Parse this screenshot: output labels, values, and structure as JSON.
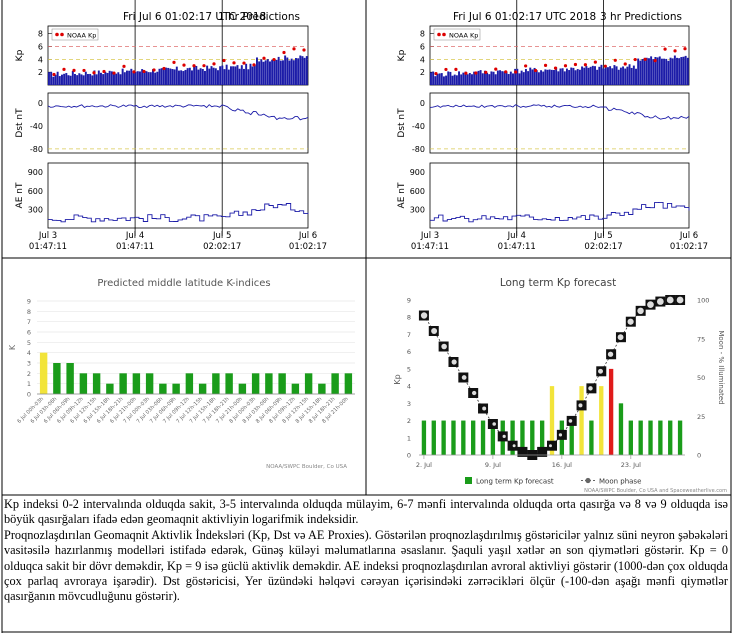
{
  "panels": {
    "pred1": {
      "title": "Fri Jul 6 01:02:17 UTC 2018",
      "subtitle": "1 hr Predictions",
      "legend": "NOAA Kp",
      "kp_label": "Kp",
      "dst_label": "Dst nT",
      "ae_label": "AE nT",
      "kp_ticks": [
        "8",
        "6",
        "4",
        "2"
      ],
      "dst_ticks": [
        "0",
        "-40",
        "-80"
      ],
      "ae_ticks": [
        "900",
        "600",
        "300"
      ],
      "x_ticks": [
        {
          "date": "Jul 3",
          "time": "01:47:11"
        },
        {
          "date": "Jul 4",
          "time": "01:47:11"
        },
        {
          "date": "Jul 5",
          "time": "02:02:17"
        },
        {
          "date": "Jul 6",
          "time": "01:02:17"
        }
      ]
    },
    "pred3": {
      "title": "Fri Jul 6 01:02:17 UTC 2018",
      "subtitle": "3 hr Predictions",
      "legend": "NOAA Kp",
      "kp_label": "Kp",
      "dst_label": "Dst nT",
      "ae_label": "AE nT",
      "kp_ticks": [
        "8",
        "6",
        "4",
        "2"
      ],
      "dst_ticks": [
        "0",
        "-40",
        "-80"
      ],
      "ae_ticks": [
        "900",
        "600",
        "300"
      ],
      "x_ticks": [
        {
          "date": "Jul 3",
          "time": "01:47:11"
        },
        {
          "date": "Jul 4",
          "time": "01:47:11"
        },
        {
          "date": "Jul 5",
          "time": "02:02:17"
        },
        {
          "date": "Jul 6",
          "time": "01:02:17"
        }
      ]
    }
  },
  "chart_data": [
    {
      "type": "bar",
      "title": "Predicted middle latitude K-indices",
      "ylabel": "K",
      "ylim": [
        0,
        9
      ],
      "y_ticks": [
        "9",
        "8",
        "7",
        "6",
        "5",
        "4",
        "3",
        "2",
        "1",
        "0"
      ],
      "credit": "NOAA/SWPC Boulder, Co USA",
      "categories": [
        "6 Jul 00h-03h",
        "6 Jul 03h-06h",
        "6 Jul 06h-09h",
        "6 Jul 09h-12h",
        "6 Jul 12h-15h",
        "6 Jul 15h-18h",
        "6 Jul 18h-21h",
        "6 Jul 21h-00h",
        "7 Jul 00h-03h",
        "7 Jul 03h-06h",
        "7 Jul 06h-09h",
        "7 Jul 09h-12h",
        "7 Jul 12h-15h",
        "7 Jul 15h-18h",
        "7 Jul 18h-21h",
        "7 Jul 21h-00h",
        "8 Jul 00h-03h",
        "8 Jul 03h-06h",
        "8 Jul 06h-09h",
        "8 Jul 09h-12h",
        "8 Jul 12h-15h",
        "8 Jul 15h-18h",
        "8 Jul 18h-21h",
        "8 Jul 21h-00h"
      ],
      "values": [
        4,
        3,
        3,
        2,
        2,
        1,
        2,
        2,
        2,
        1,
        1,
        2,
        1,
        2,
        2,
        1,
        2,
        2,
        2,
        1,
        2,
        1,
        2,
        2
      ],
      "colors": {
        "green": "#1a9c1a",
        "yellow": "#f2e43a"
      },
      "yellow_threshold": 4
    },
    {
      "type": "bar",
      "title": "Long term Kp forecast",
      "ylabel": "Kp",
      "y2label": "Moon - % Illuminated",
      "ylim": [
        0,
        9
      ],
      "y2lim": [
        0,
        100
      ],
      "y_ticks": [
        "9",
        "8",
        "7",
        "6",
        "5",
        "4",
        "3",
        "2",
        "1",
        "0"
      ],
      "y2_ticks": [
        "100",
        "75",
        "50",
        "25",
        "0"
      ],
      "x_tick_labels": [
        "2. Jul",
        "9. Jul",
        "16. Jul",
        "23. Jul"
      ],
      "x_tick_index": [
        0,
        7,
        14,
        21
      ],
      "legend": [
        "Long term Kp forecast",
        "Moon phase"
      ],
      "credit": "NOAA/SWPC Boulder, Co USA and Spaceweatherlive.com",
      "values": [
        2,
        2,
        2,
        2,
        2,
        2,
        2,
        2,
        2,
        2,
        2,
        2,
        2,
        4,
        2,
        2,
        4,
        2,
        4,
        5,
        3,
        2,
        2,
        2,
        2,
        2,
        2
      ],
      "bar_colors": [
        "g",
        "g",
        "g",
        "g",
        "g",
        "g",
        "g",
        "g",
        "g",
        "g",
        "g",
        "g",
        "g",
        "y",
        "g",
        "g",
        "y",
        "g",
        "y",
        "r",
        "g",
        "g",
        "g",
        "g",
        "g",
        "g",
        "g"
      ],
      "moon_illuminated": [
        90,
        80,
        70,
        60,
        50,
        40,
        30,
        20,
        12,
        6,
        2,
        0,
        2,
        6,
        13,
        22,
        32,
        43,
        54,
        65,
        76,
        86,
        93,
        97,
        99,
        100,
        100
      ],
      "colors": {
        "g": "#1a9c1a",
        "y": "#f2e43a",
        "r": "#e01a1a"
      }
    }
  ],
  "caption": {
    "p1": "Kp indeksi 0-2 intervalında olduqda sakit, 3-5 intervalında olduqda mülayim, 6-7 mənfi intervalında olduqda orta qasırğa və 8 və 9 olduqda isə böyük qasırğaları ifadə edən geomaqnit aktivliyin logarifmik indeksidir.",
    "p2": "Proqnozlaşdırılan Geomaqnit Aktivlik İndeksləri (Kp, Dst və AE Proxies). Göstərilən proqnozlaşdırılmış göstəricilər yalnız süni neyron şəbəkələri vasitəsilə hazırlanmış modelləri istifadə edərək, Günəş küləyi məlumatlarına əsaslanır. Şaquli yaşıl xətlər ən son qiymətləri göstərir. Kp = 0 olduqca sakit bir dövr deməkdir, Kp = 9 isə güclü aktivlik deməkdir. AE indeksi proqnozlaşdırılan avroral aktivliyi göstərir (1000-dən çox olduqda çox parlaq avroraya işarədir). Dst göstəricisi, Yer üzündəki həlqəvi cərəyan içərisindəki zərrəcikləri ölçür (-100-dən aşağı mənfi qiymətlər qasırğanın mövcudluğunu göstərir)."
  }
}
